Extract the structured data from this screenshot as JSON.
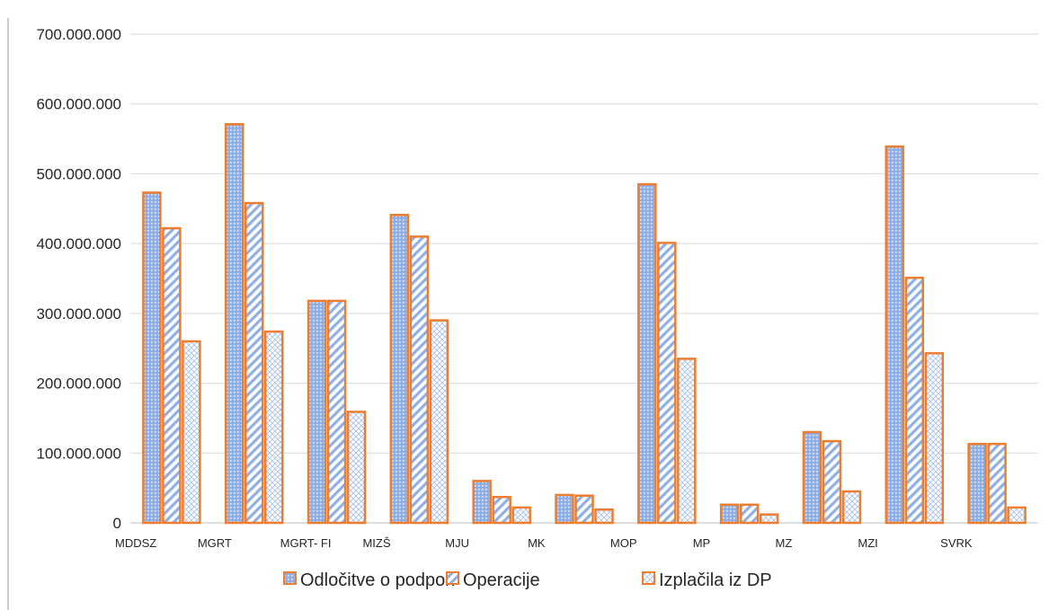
{
  "chart_data": {
    "type": "bar",
    "title": "",
    "xlabel": "",
    "ylabel": "",
    "ylim": [
      0,
      700000000
    ],
    "y_ticks": [
      0,
      100000000,
      200000000,
      300000000,
      400000000,
      500000000,
      600000000,
      700000000
    ],
    "y_tick_labels": [
      "0",
      "100.000.000",
      "200.000.000",
      "300.000.000",
      "400.000.000",
      "500.000.000",
      "600.000.000",
      "700.000.000"
    ],
    "grid": true,
    "legend_position": "bottom",
    "categories": [
      "MDDSZ",
      "MGRT",
      "MGRT- FI",
      "MIZŠ",
      "MJU",
      "MK",
      "MOP",
      "MP",
      "MZ",
      "MZI",
      "SVRK"
    ],
    "series": [
      {
        "name": "Odločitve o podpori",
        "pattern": "dots",
        "values": [
          473000000,
          571000000,
          318000000,
          441000000,
          60000000,
          40000000,
          485000000,
          26000000,
          130000000,
          539000000,
          113000000
        ]
      },
      {
        "name": "Operacije",
        "pattern": "diagonal",
        "values": [
          422000000,
          458000000,
          318000000,
          410000000,
          37000000,
          39000000,
          401000000,
          26000000,
          117000000,
          351000000,
          113000000
        ]
      },
      {
        "name": "Izplačila iz DP",
        "pattern": "crosshatch",
        "values": [
          260000000,
          274000000,
          159000000,
          290000000,
          22000000,
          19000000,
          235000000,
          12000000,
          45000000,
          243000000,
          22000000
        ]
      }
    ],
    "colors": {
      "border": "#ed7d31",
      "fill_blue": "#8fb0e6",
      "fill_light": "#dce6f7",
      "grid": "#d9d9d9",
      "title": "#1f9bd7"
    }
  }
}
